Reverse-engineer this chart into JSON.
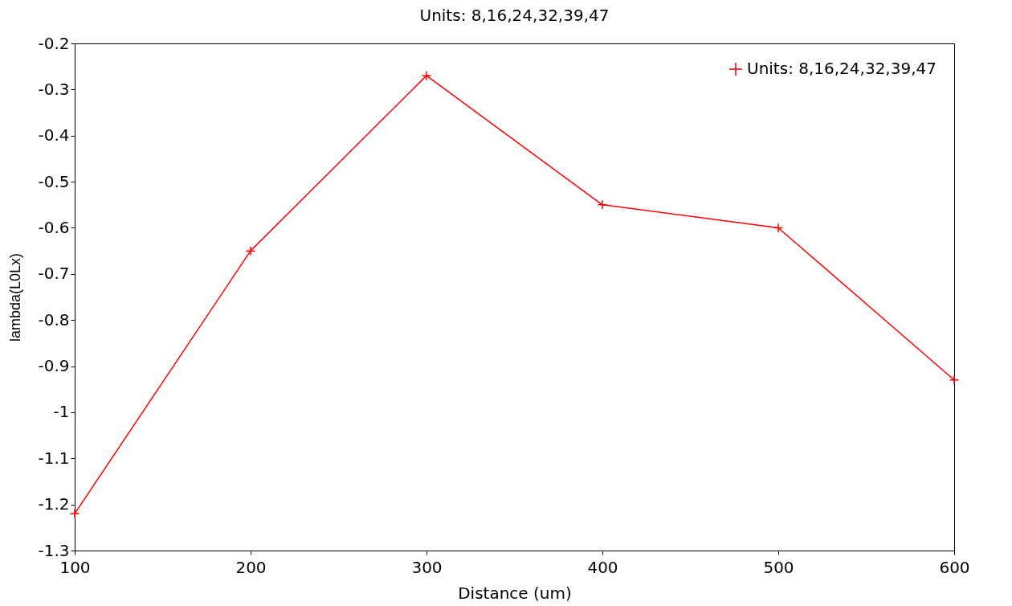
{
  "chart_data": {
    "type": "line",
    "title": "Units: 8,16,24,32,39,47",
    "xlabel": "Distance (um)",
    "ylabel": "lambda(L0Lx)",
    "x": [
      100,
      200,
      300,
      400,
      500,
      600
    ],
    "series": [
      {
        "name": "Units: 8,16,24,32,39,47",
        "color": "#ff0000",
        "values": [
          -1.22,
          -0.65,
          -0.27,
          -0.55,
          -0.6,
          -0.93
        ]
      }
    ],
    "xlim": [
      100,
      600
    ],
    "xticks": [
      100,
      200,
      300,
      400,
      500,
      600
    ],
    "ylim": [
      -1.3,
      -0.2
    ],
    "yticks": [
      -1.3,
      -1.2,
      -1.1,
      -1,
      -0.9,
      -0.8,
      -0.7,
      -0.6,
      -0.5,
      -0.4,
      -0.3,
      -0.2
    ],
    "grid": false,
    "legend": "top right",
    "marker": "cross",
    "line_style": "solid"
  }
}
